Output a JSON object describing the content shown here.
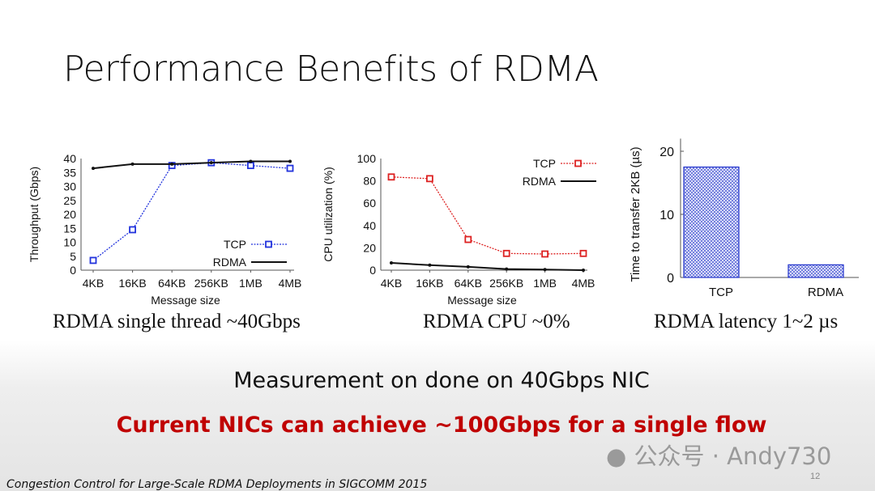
{
  "title": "Performance Benefits of RDMA",
  "captions": [
    "RDMA single thread ~40Gbps",
    "RDMA CPU ~0%",
    "RDMA latency 1~2 µs"
  ],
  "measurement": "Measurement on done on 40Gbps NIC",
  "highlight": "Current NICs can achieve ~100Gbps for a single flow",
  "watermark": "公众号 · Andy730",
  "page_number": "12",
  "citation": "Congestion Control for Large-Scale RDMA Deployments in SIGCOMM 2015",
  "colors": {
    "tcp_blue": "#2233dd",
    "tcp_red": "#dd2222",
    "rdma": "#111111",
    "highlight": "#c00000"
  },
  "chart_data": [
    {
      "type": "line",
      "title": "",
      "xlabel": "Message size",
      "ylabel": "Throughput (Gbps)",
      "categories": [
        "4KB",
        "16KB",
        "64KB",
        "256KB",
        "1MB",
        "4MB"
      ],
      "yticks": [
        0,
        5,
        10,
        15,
        20,
        25,
        30,
        35,
        40
      ],
      "ylim": [
        0,
        40
      ],
      "legend": "bottom-right",
      "series": [
        {
          "name": "TCP",
          "values": [
            3.5,
            14.5,
            37.5,
            38.5,
            37.5,
            36.5
          ]
        },
        {
          "name": "RDMA",
          "values": [
            36.5,
            38,
            38,
            38.5,
            39,
            39
          ]
        }
      ]
    },
    {
      "type": "line",
      "title": "",
      "xlabel": "Message size",
      "ylabel": "CPU utilization (%)",
      "categories": [
        "4KB",
        "16KB",
        "64KB",
        "256KB",
        "1MB",
        "4MB"
      ],
      "yticks": [
        0,
        20,
        40,
        60,
        80,
        100
      ],
      "ylim": [
        0,
        100
      ],
      "legend": "top-right",
      "series": [
        {
          "name": "TCP",
          "values": [
            83.5,
            82,
            27.5,
            15,
            14.5,
            15
          ]
        },
        {
          "name": "RDMA",
          "values": [
            6.5,
            4.5,
            3,
            1,
            0.5,
            0
          ]
        }
      ]
    },
    {
      "type": "bar",
      "title": "",
      "xlabel": "",
      "ylabel": "Time to transfer 2KB (µs)",
      "categories": [
        "TCP",
        "RDMA"
      ],
      "values": [
        17.5,
        2
      ],
      "yticks": [
        0,
        10,
        20
      ],
      "ylim": [
        0,
        22
      ]
    }
  ]
}
